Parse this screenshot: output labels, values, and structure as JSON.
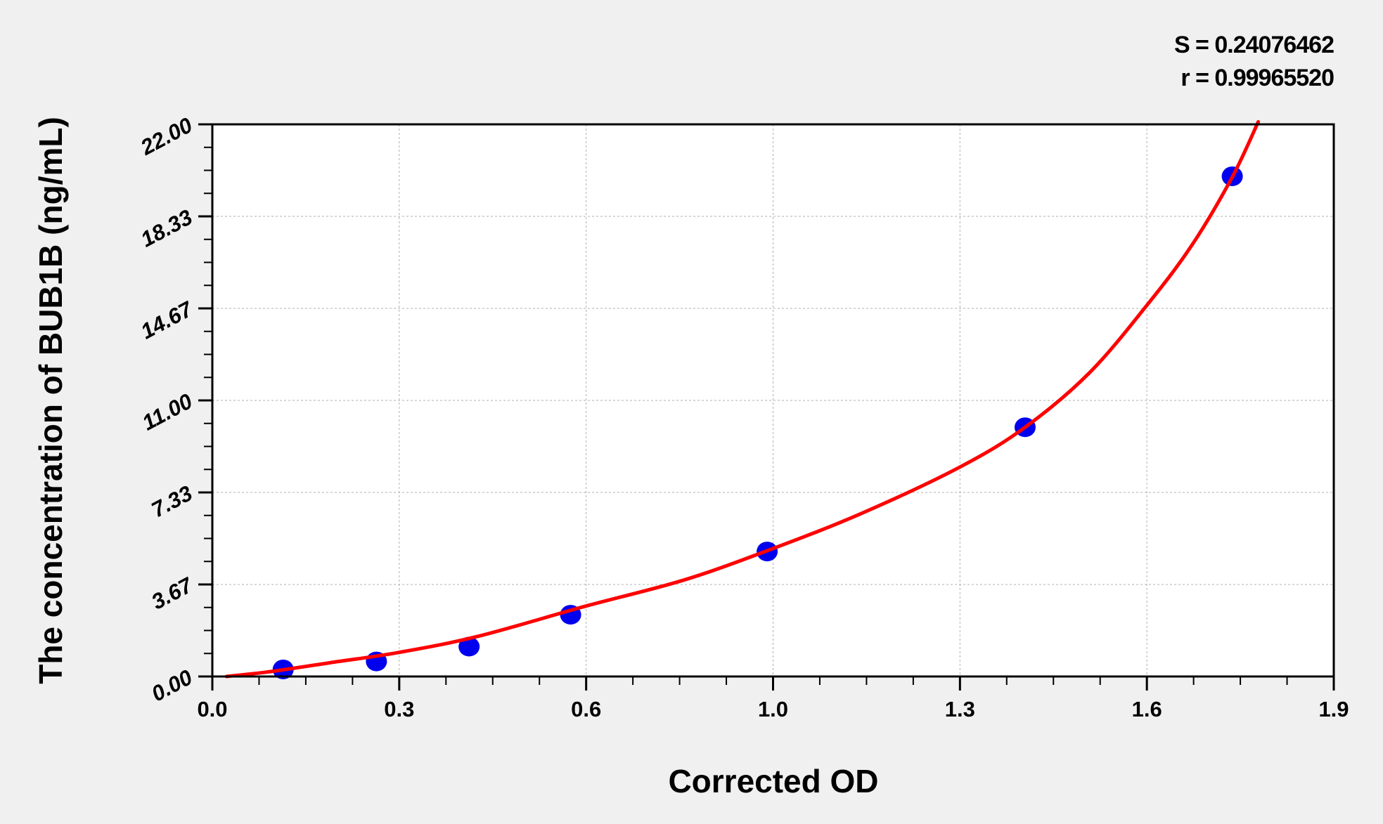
{
  "chart_data": {
    "type": "scatter",
    "title": "",
    "xlabel": "Corrected OD",
    "ylabel": "The concentration of BUB1B (ng/mL)",
    "xlim": [
      0,
      1.9
    ],
    "ylim": [
      0,
      22
    ],
    "x_tick_labels": [
      "0.0",
      "0.3",
      "0.6",
      "1.0",
      "1.3",
      "1.6",
      "1.9"
    ],
    "y_tick_labels": [
      "0.00",
      "3.67",
      "7.33",
      "11.00",
      "14.67",
      "18.33",
      "22.00"
    ],
    "grid": true,
    "stats": {
      "s": "S = 0.24076462",
      "r": "r = 0.99965520"
    },
    "points": {
      "x": [
        0.12,
        0.278,
        0.435,
        0.607,
        0.94,
        1.377,
        1.728
      ],
      "y": [
        0.28,
        0.6,
        1.19,
        2.46,
        4.98,
        9.93,
        19.93
      ]
    },
    "fit_curve": {
      "x": [
        0.024,
        0.1,
        0.2,
        0.314,
        0.45,
        0.632,
        0.8,
        0.95,
        1.1,
        1.267,
        1.377,
        1.486,
        1.585,
        1.66,
        1.728,
        1.772
      ],
      "y": [
        0.0,
        0.2,
        0.55,
        0.95,
        1.6,
        2.8,
        3.85,
        5.1,
        6.5,
        8.35,
        9.93,
        12.1,
        14.84,
        17.2,
        19.9,
        22.1
      ]
    },
    "colors": {
      "points": "#0000ee",
      "curve": "#ff0000",
      "grid": "#b0b0b0"
    }
  }
}
